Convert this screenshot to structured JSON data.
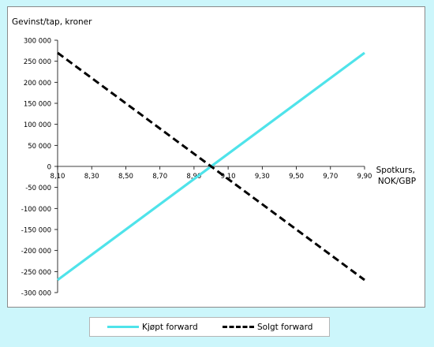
{
  "chart_data": {
    "type": "line",
    "ylabel": "Gevinst/tap, kroner",
    "xlabel": [
      "Spotkurs,",
      "NOK/GBP"
    ],
    "xlim": [
      8.1,
      9.9
    ],
    "ylim": [
      -300000,
      300000
    ],
    "xticks": [
      8.1,
      8.3,
      8.5,
      8.7,
      8.9,
      9.1,
      9.3,
      9.5,
      9.7,
      9.9
    ],
    "xtick_labels": [
      "8,10",
      "8,30",
      "8,50",
      "8,70",
      "8,90",
      "9,10",
      "9,30",
      "9,50",
      "9,70",
      "9,90"
    ],
    "yticks": [
      300000,
      250000,
      200000,
      150000,
      100000,
      50000,
      0,
      -50000,
      -100000,
      -150000,
      -200000,
      -250000,
      -300000
    ],
    "ytick_labels": [
      "300 000",
      "250 000",
      "200 000",
      "150 000",
      "100 000",
      "50 000",
      "0",
      "-50 000",
      "-100 000",
      "-150 000",
      "-200 000",
      "-250 000",
      "-300 000"
    ],
    "grid": false,
    "legend_position": "bottom",
    "series": [
      {
        "name": "Kjøpt forward",
        "x": [
          8.1,
          9.9
        ],
        "y": [
          -270000,
          270000
        ],
        "color": "#4fe3ea",
        "style": "solid"
      },
      {
        "name": "Solgt forward",
        "x": [
          8.1,
          9.9
        ],
        "y": [
          270000,
          -270000
        ],
        "color": "#000000",
        "style": "dashed"
      }
    ]
  }
}
